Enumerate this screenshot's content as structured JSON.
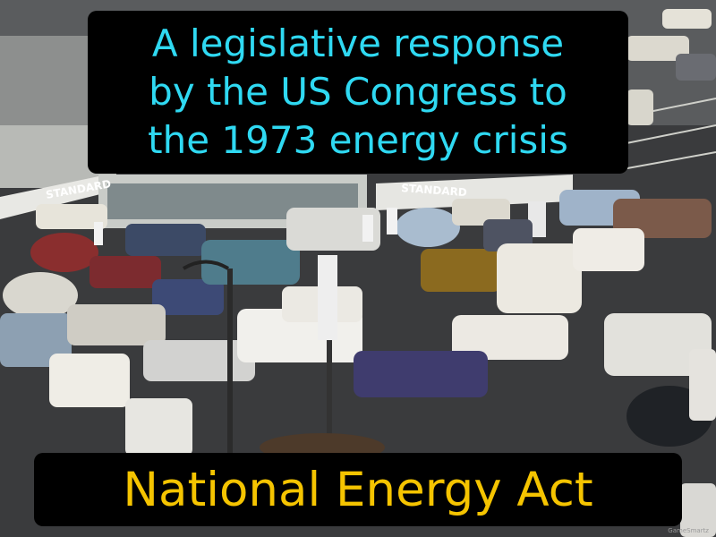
{
  "caption": {
    "definition": "A legislative response\nby the US Congress to\nthe 1973 energy crisis",
    "term": "National Energy Act",
    "brand": "GameSmartz"
  },
  "signs": {
    "left_station": "STANDARD",
    "right_station": "STANDARD"
  },
  "colors": {
    "definition_text": "#2fd9f2",
    "term_text": "#f5c400",
    "caption_background": "#000000"
  }
}
